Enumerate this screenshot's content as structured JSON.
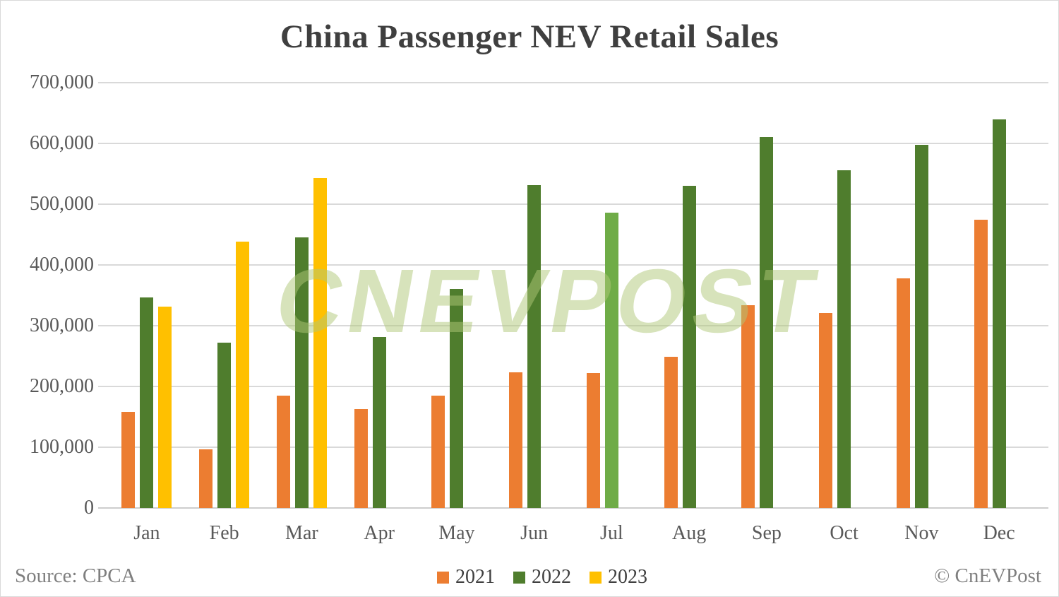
{
  "title": "China Passenger NEV Retail Sales",
  "watermark": "CNEVPOST",
  "footer": {
    "source": "Source: CPCA",
    "copyright": "© CnEVPost"
  },
  "colors": {
    "series_2021": "#EC7D31",
    "series_2022": "#4F7D2D",
    "series_2022_jul_light": "#6FAC47",
    "series_2023": "#FFC000",
    "gridline": "#D9D9D9",
    "axis_text": "#595959",
    "title_text": "#3F3F3F",
    "footer_text": "#7F7F7F",
    "legend_text": "#404040",
    "watermark": "rgba(175,200,120,0.5)"
  },
  "chart_data": {
    "type": "bar",
    "title": "China Passenger NEV Retail Sales",
    "categories": [
      "Jan",
      "Feb",
      "Mar",
      "Apr",
      "May",
      "Jun",
      "Jul",
      "Aug",
      "Sep",
      "Oct",
      "Nov",
      "Dec"
    ],
    "series": [
      {
        "name": "2021",
        "color": "#EC7D31",
        "values": [
          158000,
          97000,
          185000,
          163000,
          185000,
          223000,
          222000,
          249000,
          334000,
          321000,
          378000,
          475000
        ]
      },
      {
        "name": "2022",
        "color": "#4F7D2D",
        "values": [
          347000,
          272000,
          445000,
          282000,
          360000,
          532000,
          486000,
          530000,
          611000,
          556000,
          598000,
          640000
        ],
        "bar_color_overrides": {
          "6": "#6FAC47"
        }
      },
      {
        "name": "2023",
        "color": "#FFC000",
        "values": [
          332000,
          439000,
          543000,
          null,
          null,
          null,
          null,
          null,
          null,
          null,
          null,
          null
        ]
      }
    ],
    "ylabel": "",
    "xlabel": "",
    "ylim": [
      0,
      700000
    ],
    "ytick_step": 100000,
    "grid": true,
    "legend_position": "bottom"
  }
}
